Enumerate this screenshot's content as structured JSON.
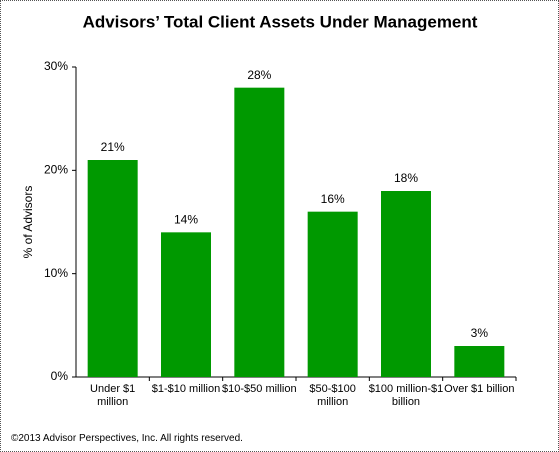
{
  "chart_data": {
    "type": "bar",
    "title": "Advisors’ Total Client Assets Under Management",
    "y_label": "% of Advisors",
    "categories": [
      "Under $1 million",
      "$1-$10 million",
      "$10-$50 million",
      "$50-$100 million",
      "$100 million-$1 billion",
      "Over $1 billion"
    ],
    "values": [
      21,
      14,
      28,
      16,
      18,
      3
    ],
    "value_labels": [
      "21%",
      "14%",
      "28%",
      "16%",
      "18%",
      "3%"
    ],
    "color": "#009900",
    "ylim": [
      0,
      30
    ],
    "yticks": [
      {
        "value": 0,
        "label": "0%"
      },
      {
        "value": 10,
        "label": "10%"
      },
      {
        "value": 20,
        "label": "20%"
      },
      {
        "value": 30,
        "label": "30%"
      }
    ],
    "grid": false
  },
  "footer": "©2013 Advisor Perspectives, Inc. All rights reserved."
}
